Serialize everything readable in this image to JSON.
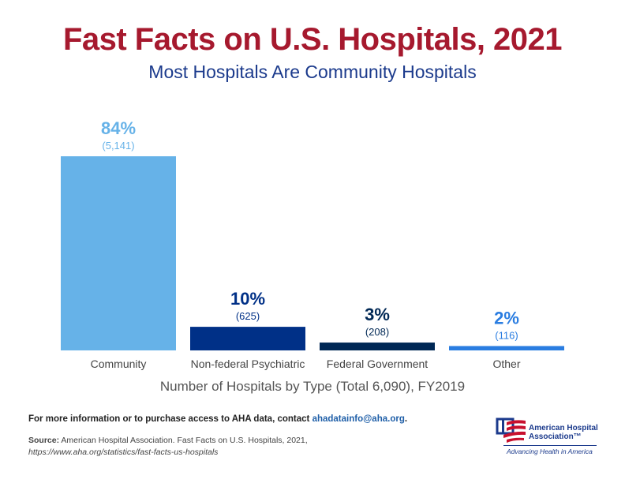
{
  "title": "Fast Facts on U.S. Hospitals, 2021",
  "subtitle": "Most Hospitals Are Community Hospitals",
  "chart_data": {
    "type": "bar",
    "categories": [
      "Community",
      "Non-federal Psychiatric",
      "Federal Government",
      "Other"
    ],
    "values": [
      5141,
      625,
      208,
      116
    ],
    "percent_labels": [
      "84%",
      "10%",
      "3%",
      "2%"
    ],
    "count_labels": [
      "(5,141)",
      "(625)",
      "(208)",
      "(116)"
    ],
    "colors": [
      "#66b2e8",
      "#003087",
      "#002855",
      "#2a7de1"
    ],
    "xlabel": "Number of Hospitals by Type (Total 6,090), FY2019",
    "ylabel": "",
    "grid": false,
    "axis_visible": false
  },
  "footer": {
    "info_text": "For more information or to purchase access to AHA data, contact ",
    "info_email": "ahadatainfo@aha.org",
    "info_end": ".",
    "source_label": "Source:",
    "source_text": " American Hospital Association. Fast Facts on U.S. Hospitals, 2021,",
    "source_url": "https://www.aha.org/statistics/fast-facts-us-hospitals"
  },
  "logo": {
    "name_line1": "American Hospital",
    "name_line2": "Association™",
    "tagline": "Advancing Health in America"
  }
}
